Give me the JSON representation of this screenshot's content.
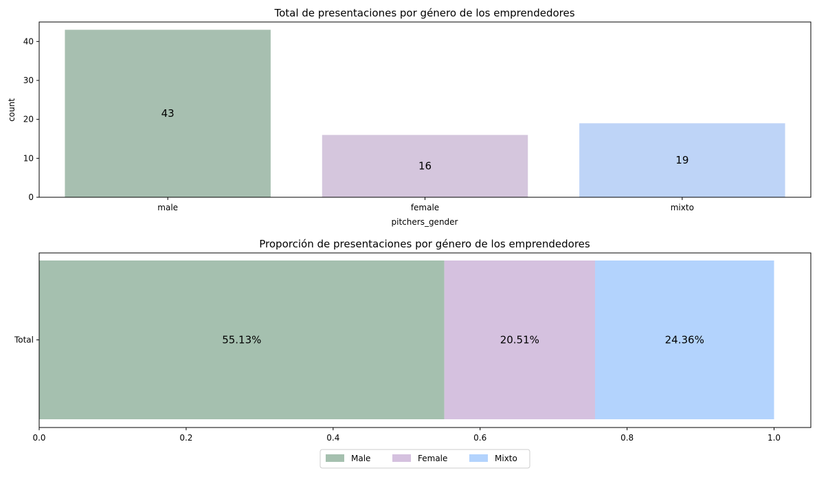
{
  "chart_data": [
    {
      "type": "bar",
      "title": "Total de presentaciones por género de los emprendedores",
      "xlabel": "pitchers_gender",
      "ylabel": "count",
      "categories": [
        "male",
        "female",
        "mixto"
      ],
      "values": [
        43,
        16,
        19
      ],
      "value_labels": [
        "43",
        "16",
        "19"
      ],
      "colors": [
        "#a7bfb0",
        "#d5c6dd",
        "#bed4f7"
      ],
      "ylim": [
        0,
        45
      ],
      "yticks": [
        0,
        10,
        20,
        30,
        40
      ],
      "ytick_labels": [
        "0",
        "10",
        "20",
        "30",
        "40"
      ],
      "grid": false
    },
    {
      "type": "bar",
      "orientation": "horizontal",
      "stacked": true,
      "title": "Proporción de presentaciones por género de los emprendedores",
      "categories": [
        "Total"
      ],
      "series": [
        {
          "name": "Male",
          "values": [
            0.5513
          ],
          "label": "55.13%",
          "color": "#a5c0af"
        },
        {
          "name": "Female",
          "values": [
            0.2051
          ],
          "label": "20.51%",
          "color": "#d5c1df"
        },
        {
          "name": "Mixto",
          "values": [
            0.2436
          ],
          "label": "24.36%",
          "color": "#b3d3fd"
        }
      ],
      "xlim": [
        0,
        1.05
      ],
      "xticks": [
        0,
        0.2,
        0.4,
        0.6,
        0.8,
        1.0
      ],
      "xtick_labels": [
        "0.0",
        "0.2",
        "0.4",
        "0.6",
        "0.8",
        "1.0"
      ],
      "legend_position": "bottom-center",
      "grid": false
    }
  ]
}
